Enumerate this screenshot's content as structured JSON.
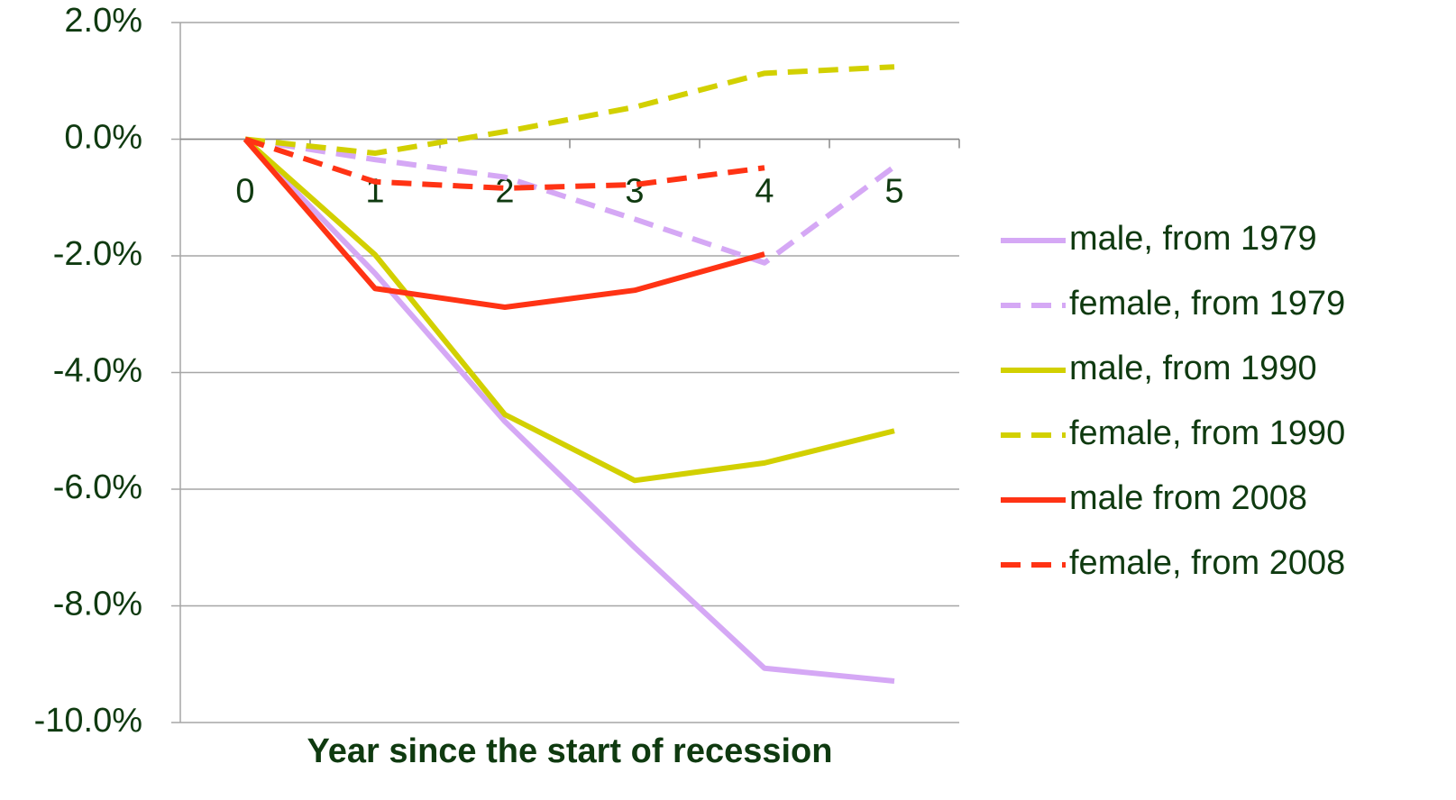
{
  "chart_data": {
    "type": "line",
    "x_label": "Year since the start of recession",
    "categories": [
      "0",
      "1",
      "2",
      "3",
      "4",
      "5"
    ],
    "ylim": [
      -10,
      2
    ],
    "yticks": [
      {
        "value": -10,
        "label": "-10.0%"
      },
      {
        "value": -8,
        "label": "-8.0%"
      },
      {
        "value": -6,
        "label": "-6.0%"
      },
      {
        "value": -4,
        "label": "-4.0%"
      },
      {
        "value": -2,
        "label": "-2.0%"
      },
      {
        "value": 0,
        "label": "0.0%"
      },
      {
        "value": 2,
        "label": "2.0%"
      }
    ],
    "grid": true,
    "legend": "right",
    "series": [
      {
        "name": "male, from 1979",
        "color": "#d5a8f5",
        "dashed": false,
        "values": [
          0,
          -2.3,
          -4.84,
          -7.0,
          -9.07,
          -9.29
        ]
      },
      {
        "name": "female, from 1979",
        "color": "#d5a8f5",
        "dashed": true,
        "values": [
          0,
          -0.35,
          -0.65,
          -1.37,
          -2.12,
          -0.47
        ]
      },
      {
        "name": "male, from 1990",
        "color": "#d2d000",
        "dashed": false,
        "values": [
          0,
          -1.98,
          -4.72,
          -5.85,
          -5.55,
          -5.0
        ]
      },
      {
        "name": "female, from 1990",
        "color": "#d2d000",
        "dashed": true,
        "values": [
          0,
          -0.24,
          0.13,
          0.55,
          1.13,
          1.24
        ]
      },
      {
        "name": "male from 2008",
        "color": "#ff3314",
        "dashed": false,
        "values": [
          0,
          -2.56,
          -2.88,
          -2.59,
          -1.97,
          null
        ]
      },
      {
        "name": "female, from 2008",
        "color": "#ff3314",
        "dashed": true,
        "values": [
          0,
          -0.73,
          -0.84,
          -0.78,
          -0.49,
          null
        ]
      }
    ]
  }
}
